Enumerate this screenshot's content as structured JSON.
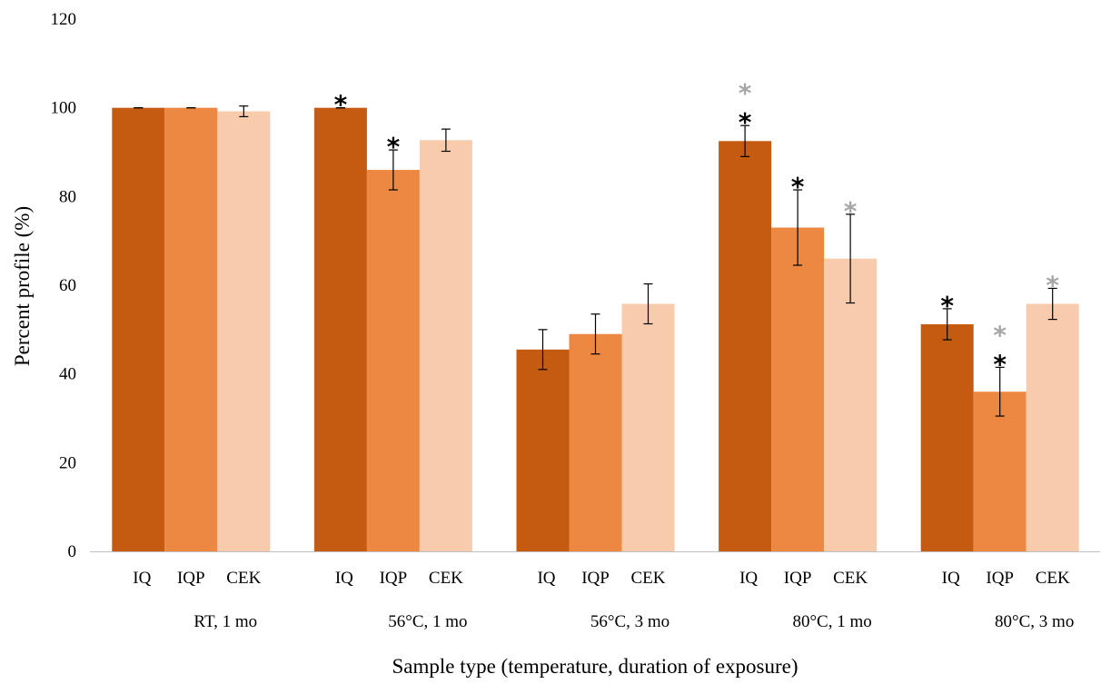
{
  "chart_data": {
    "type": "bar",
    "title": "",
    "xlabel": "Sample type (temperature, duration of exposure)",
    "ylabel": "Percent profile (%)",
    "ylim": [
      0,
      120
    ],
    "yticks": [
      "0",
      "20",
      "40",
      "60",
      "80",
      "100",
      "120"
    ],
    "grid": false,
    "legend": "none",
    "groups": [
      "RT, 1 mo",
      "56°C, 1 mo",
      "56°C, 3 mo",
      "80°C, 1 mo",
      "80°C, 3 mo"
    ],
    "sample_types": [
      "IQ",
      "IQP",
      "CEK"
    ],
    "series": [
      {
        "values": [
          100,
          100,
          45.5,
          92.5,
          51.2
        ],
        "errors": [
          0,
          0,
          4.5,
          3.5,
          3.5
        ],
        "color": "#C55A11"
      },
      {
        "values": [
          100,
          86,
          49,
          73,
          36
        ],
        "errors": [
          0,
          4.5,
          4.5,
          8.5,
          5.5
        ],
        "color": "#ED8843"
      },
      {
        "values": [
          99.2,
          92.7,
          55.8,
          66,
          55.8
        ],
        "errors": [
          1.2,
          2.5,
          4.5,
          10,
          3.5
        ],
        "color": "#F8CBAD"
      }
    ],
    "markers": [
      {
        "group": 1,
        "series": 0,
        "symbols": [
          "*"
        ],
        "colors": [
          "#000000"
        ]
      },
      {
        "group": 1,
        "series": 1,
        "symbols": [
          "*"
        ],
        "colors": [
          "#000000"
        ]
      },
      {
        "group": 3,
        "series": 0,
        "symbols": [
          "*",
          "*"
        ],
        "colors": [
          "#000000",
          "#A6A6A6"
        ]
      },
      {
        "group": 3,
        "series": 1,
        "symbols": [
          "*"
        ],
        "colors": [
          "#000000"
        ]
      },
      {
        "group": 3,
        "series": 2,
        "symbols": [
          "*"
        ],
        "colors": [
          "#A6A6A6"
        ]
      },
      {
        "group": 4,
        "series": 0,
        "symbols": [
          "*"
        ],
        "colors": [
          "#000000"
        ]
      },
      {
        "group": 4,
        "series": 1,
        "symbols": [
          "*",
          "*"
        ],
        "colors": [
          "#000000",
          "#A6A6A6"
        ]
      },
      {
        "group": 4,
        "series": 2,
        "symbols": [
          "*"
        ],
        "colors": [
          "#A6A6A6"
        ]
      }
    ]
  }
}
